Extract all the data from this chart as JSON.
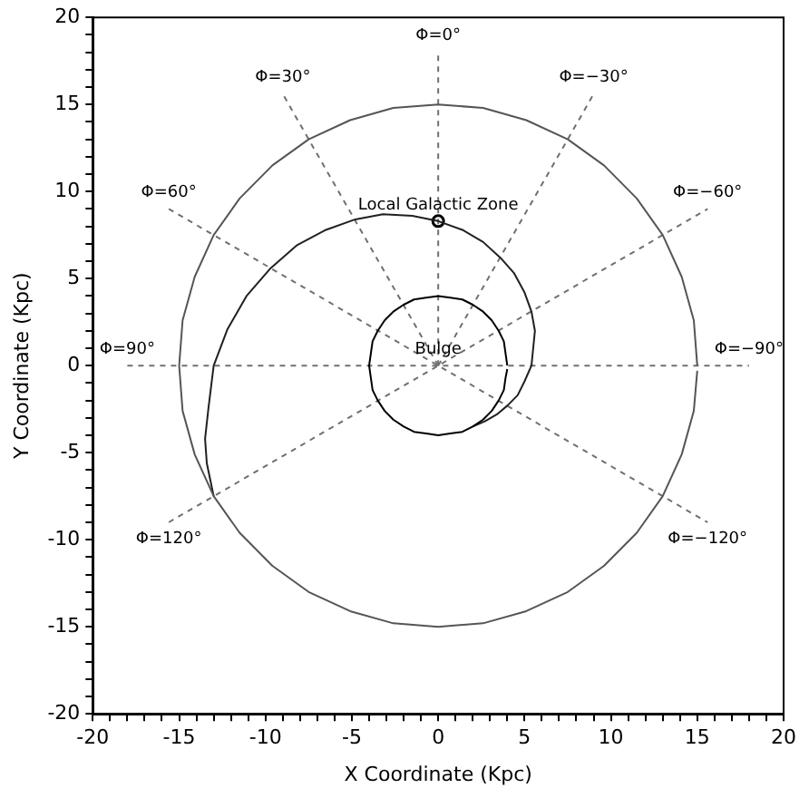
{
  "chart_data": {
    "type": "line",
    "xlabel": "X Coordinate (Kpc)",
    "ylabel": "Y Coordinate (Kpc)",
    "xlim": [
      -20,
      20
    ],
    "ylim": [
      -20,
      20
    ],
    "xticks": [
      -20,
      {
        "value": -19,
        "label": null
      },
      {
        "value": -18,
        "label": null
      },
      {
        "value": -17,
        "label": null
      },
      {
        "value": -16,
        "label": null
      },
      -15,
      {
        "value": -14,
        "label": null
      },
      {
        "value": -13,
        "label": null
      },
      {
        "value": -12,
        "label": null
      },
      {
        "value": -11,
        "label": null
      },
      -10,
      {
        "value": -9,
        "label": null
      },
      {
        "value": -8,
        "label": null
      },
      {
        "value": -7,
        "label": null
      },
      {
        "value": -6,
        "label": null
      },
      -5,
      {
        "value": -4,
        "label": null
      },
      {
        "value": -3,
        "label": null
      },
      {
        "value": -2,
        "label": null
      },
      {
        "value": -1,
        "label": null
      },
      0,
      {
        "value": 1,
        "label": null
      },
      {
        "value": 2,
        "label": null
      },
      {
        "value": 3,
        "label": null
      },
      {
        "value": 4,
        "label": null
      },
      5,
      {
        "value": 6,
        "label": null
      },
      {
        "value": 7,
        "label": null
      },
      {
        "value": 8,
        "label": null
      },
      {
        "value": 9,
        "label": null
      },
      10,
      {
        "value": 11,
        "label": null
      },
      {
        "value": 12,
        "label": null
      },
      {
        "value": 13,
        "label": null
      },
      {
        "value": 14,
        "label": null
      },
      15,
      {
        "value": 16,
        "label": null
      },
      {
        "value": 17,
        "label": null
      },
      {
        "value": 18,
        "label": null
      },
      {
        "value": 19,
        "label": null
      },
      20
    ],
    "yticks": [
      -20,
      {
        "value": -19,
        "label": null
      },
      {
        "value": -18,
        "label": null
      },
      {
        "value": -17,
        "label": null
      },
      {
        "value": -16,
        "label": null
      },
      -15,
      {
        "value": -14,
        "label": null
      },
      {
        "value": -13,
        "label": null
      },
      {
        "value": -12,
        "label": null
      },
      {
        "value": -11,
        "label": null
      },
      -10,
      {
        "value": -9,
        "label": null
      },
      {
        "value": -8,
        "label": null
      },
      {
        "value": -7,
        "label": null
      },
      {
        "value": -6,
        "label": null
      },
      -5,
      {
        "value": -4,
        "label": null
      },
      {
        "value": -3,
        "label": null
      },
      {
        "value": -2,
        "label": null
      },
      {
        "value": -1,
        "label": null
      },
      0,
      {
        "value": 1,
        "label": null
      },
      {
        "value": 2,
        "label": null
      },
      {
        "value": 3,
        "label": null
      },
      {
        "value": 4,
        "label": null
      },
      5,
      {
        "value": 6,
        "label": null
      },
      {
        "value": 7,
        "label": null
      },
      {
        "value": 8,
        "label": null
      },
      {
        "value": 9,
        "label": null
      },
      10,
      {
        "value": 11,
        "label": null
      },
      {
        "value": 12,
        "label": null
      },
      {
        "value": 13,
        "label": null
      },
      {
        "value": 14,
        "label": null
      },
      15,
      {
        "value": 16,
        "label": null
      },
      {
        "value": 17,
        "label": null
      },
      {
        "value": 18,
        "label": null
      },
      {
        "value": 19,
        "label": null
      },
      20
    ],
    "grid": false,
    "legend": false,
    "series": [
      {
        "color": "#555555",
        "marker": "none",
        "line_style": "solid",
        "x": [
          15,
          14.8,
          14.1,
          13,
          11.5,
          9.6,
          7.5,
          5.1,
          2.6,
          0,
          -2.6,
          -5.1,
          -7.5,
          -9.6,
          -11.5,
          -13,
          -14.1,
          -14.8,
          -15,
          -14.8,
          -14.1,
          -13,
          -11.5,
          -9.6,
          -7.5,
          -5.1,
          -2.6,
          0,
          2.6,
          5.1,
          7.5,
          9.6,
          11.5,
          13,
          14.1,
          14.8,
          15
        ],
        "values": [
          0,
          2.6,
          5.1,
          7.5,
          9.6,
          11.5,
          13,
          14.1,
          14.8,
          15,
          14.8,
          14.1,
          13,
          11.5,
          9.6,
          7.5,
          5.1,
          2.6,
          0,
          -2.6,
          -5.1,
          -7.5,
          -9.6,
          -11.5,
          -13,
          -14.1,
          -14.8,
          -15,
          -14.8,
          -14.1,
          -13,
          -11.5,
          -9.6,
          -7.5,
          -5.1,
          -2.6,
          -0.3
        ]
      },
      {
        "color": "#000000",
        "marker": "none",
        "line_style": "solid",
        "x": [
          4,
          3.9,
          3.8,
          3.5,
          3.1,
          2.6,
          2,
          1.4,
          0.7,
          0,
          -0.7,
          -1.4,
          -2,
          -2.6,
          -3.1,
          -3.5,
          -3.8,
          -3.9,
          -4,
          -3.9,
          -3.8,
          -3.5,
          -3.1,
          -2.6,
          -2,
          -1.4,
          -0.7,
          0,
          0.7,
          1.4,
          2,
          2.6,
          3.1,
          3.5,
          3.8,
          3.9,
          4
        ],
        "values": [
          0,
          0.7,
          1.4,
          2,
          2.6,
          3.1,
          3.5,
          3.8,
          3.9,
          4,
          3.9,
          3.8,
          3.5,
          3.1,
          2.6,
          2,
          1.4,
          0.7,
          0,
          -0.7,
          -1.4,
          -2,
          -2.6,
          -3.1,
          -3.5,
          -3.8,
          -3.9,
          -4,
          -3.9,
          -3.8,
          -3.5,
          -3.1,
          -2.6,
          -2,
          -1.4,
          -0.7,
          -0.2
        ]
      },
      {
        "color": "#202020",
        "marker": "none",
        "line_style": "solid",
        "x": [
          2,
          2.7,
          3.4,
          4,
          4.6,
          5,
          5.4,
          5.5,
          5.6,
          5.4,
          5,
          4.4,
          3.6,
          2.6,
          1.4,
          0,
          -1.5,
          -3.2,
          -4.8,
          -6.5,
          -8.2,
          -9.7,
          -11.1,
          -12.2,
          -13,
          -13.3,
          -13.5,
          -13.4,
          -13
        ],
        "values": [
          -3.5,
          -3.2,
          -2.8,
          -2.3,
          -1.7,
          -0.9,
          0,
          1,
          2,
          3.1,
          4.2,
          5.3,
          6.2,
          7.1,
          7.8,
          8.3,
          8.6,
          8.7,
          8.4,
          7.8,
          6.9,
          5.6,
          4,
          2.1,
          0,
          -2.4,
          -4.2,
          -5.6,
          -7.5
        ]
      },
      {
        "color": "#707070",
        "marker": "none",
        "line_style": "dashed",
        "x": [
          -18,
          18
        ],
        "values": [
          0,
          0
        ]
      },
      {
        "color": "#707070",
        "marker": "none",
        "line_style": "dashed",
        "x": [
          0,
          0
        ],
        "values": [
          0,
          18
        ]
      },
      {
        "color": "#707070",
        "marker": "none",
        "line_style": "dashed",
        "x": [
          0,
          -9
        ],
        "values": [
          0,
          15.6
        ]
      },
      {
        "color": "#707070",
        "marker": "none",
        "line_style": "dashed",
        "x": [
          0,
          9
        ],
        "values": [
          0,
          15.6
        ]
      },
      {
        "color": "#707070",
        "marker": "none",
        "line_style": "dashed",
        "x": [
          -15.6,
          15.6
        ],
        "values": [
          9,
          -9
        ]
      },
      {
        "color": "#707070",
        "marker": "none",
        "line_style": "dashed",
        "x": [
          -15.6,
          15.6
        ],
        "values": [
          -9,
          9
        ]
      },
      {
        "type": "scatter",
        "color": "#000000",
        "marker": "circle",
        "x": [
          0
        ],
        "values": [
          8.3
        ]
      }
    ],
    "annotations": [
      {
        "text": "Φ=0°",
        "x": 0,
        "y": 18
      },
      {
        "text": "Φ=30°",
        "x": -9,
        "y": 15.6
      },
      {
        "text": "Φ=−30°",
        "x": 9,
        "y": 15.6
      },
      {
        "text": "Φ=60°",
        "x": -15.6,
        "y": 9
      },
      {
        "text": "Φ=−60°",
        "x": 15.6,
        "y": 9
      },
      {
        "text": "Φ=90°",
        "x": -18,
        "y": 0
      },
      {
        "text": "Φ=−90°",
        "x": 18,
        "y": 0
      },
      {
        "text": "Φ=120°",
        "x": -15.6,
        "y": -9
      },
      {
        "text": "Φ=−120°",
        "x": 15.6,
        "y": -9
      },
      {
        "text": "Local Galactic Zone",
        "x": 0,
        "y": 8.3
      },
      {
        "text": "Bulge",
        "x": 0,
        "y": 0
      }
    ]
  }
}
